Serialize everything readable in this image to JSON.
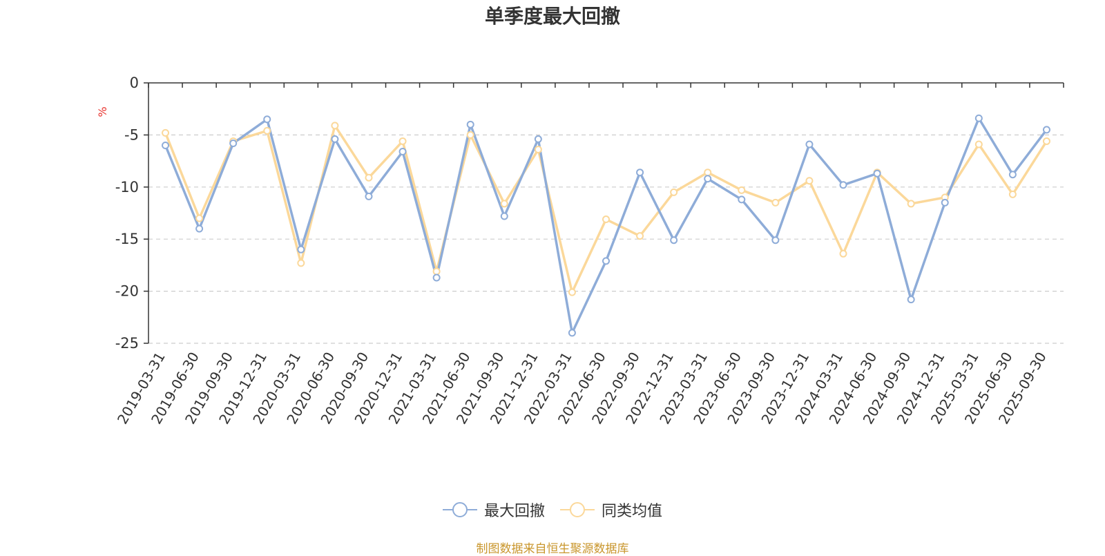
{
  "chart_data": {
    "type": "line",
    "title": "单季度最大回撤",
    "ylabel": "%",
    "ylim": [
      -25,
      0
    ],
    "yticks": [
      0,
      -5,
      -10,
      -15,
      -20,
      -25
    ],
    "grid": true,
    "legend_position": "bottom",
    "categories": [
      "2019-03-31",
      "2019-06-30",
      "2019-09-30",
      "2019-12-31",
      "2020-03-31",
      "2020-06-30",
      "2020-09-30",
      "2020-12-31",
      "2021-03-31",
      "2021-06-30",
      "2021-09-30",
      "2021-12-31",
      "2022-03-31",
      "2022-06-30",
      "2022-09-30",
      "2022-12-31",
      "2023-03-31",
      "2023-06-30",
      "2023-09-30",
      "2023-12-31",
      "2024-03-31",
      "2024-06-30",
      "2024-09-30",
      "2024-12-31",
      "2025-03-31",
      "2025-06-30",
      "2025-09-30"
    ],
    "series": [
      {
        "name": "最大回撤",
        "color": "#8eacd8",
        "values": [
          -6.0,
          -14.0,
          -5.8,
          -3.5,
          -16.0,
          -5.4,
          -10.9,
          -6.6,
          -18.7,
          -4.0,
          -12.8,
          -5.4,
          -24.0,
          -17.1,
          -8.6,
          -15.1,
          -9.2,
          -11.2,
          -15.1,
          -5.9,
          -9.8,
          -8.7,
          -20.8,
          -11.5,
          -3.4,
          -8.8,
          -4.5
        ]
      },
      {
        "name": "同类均值",
        "color": "#fbd89a",
        "values": [
          -4.8,
          -13.0,
          -5.6,
          -4.6,
          -17.3,
          -4.1,
          -9.1,
          -5.6,
          -18.1,
          -5.0,
          -11.6,
          -6.4,
          -20.1,
          -13.1,
          -14.7,
          -10.5,
          -8.6,
          -10.3,
          -11.5,
          -9.4,
          -16.4,
          -8.6,
          -11.6,
          -11.0,
          -5.9,
          -10.7,
          -5.6
        ]
      }
    ]
  },
  "source": "制图数据来自恒生聚源数据库"
}
